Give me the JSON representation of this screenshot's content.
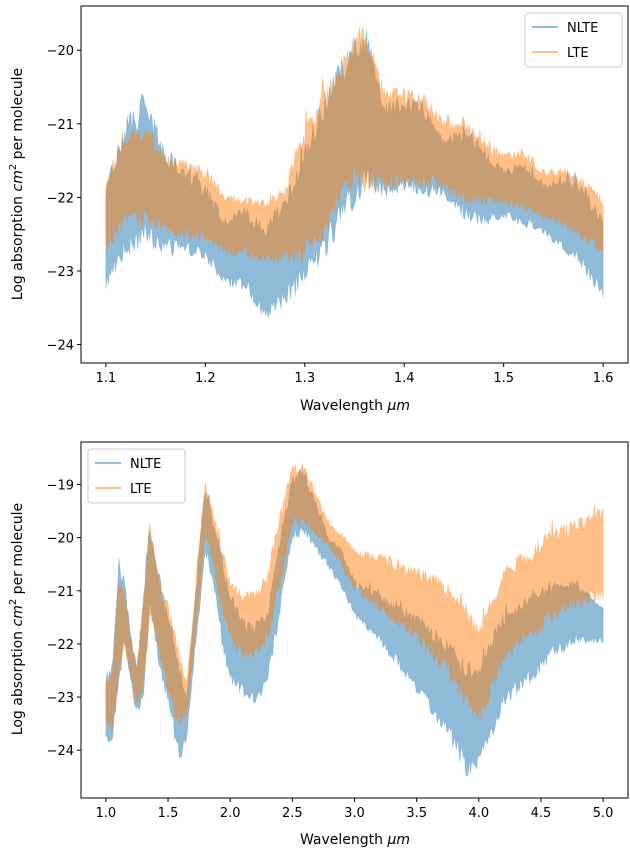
{
  "chart_data": [
    {
      "type": "area",
      "xlabel": "Wavelength",
      "xlabel_unit": "μm",
      "ylabel": "Log absorption",
      "ylabel_unit_base": "cm",
      "ylabel_unit_exp": "2",
      "ylabel_suffix": "per molecule",
      "xlim": [
        1.075,
        1.625
      ],
      "ylim": [
        -24.25,
        -19.4
      ],
      "xticks": [
        1.1,
        1.2,
        1.3,
        1.4,
        1.5,
        1.6
      ],
      "xtick_labels": [
        "1.1",
        "1.2",
        "1.3",
        "1.4",
        "1.5",
        "1.6"
      ],
      "yticks": [
        -24,
        -23,
        -22,
        -21,
        -20
      ],
      "ytick_labels": [
        "−24",
        "−23",
        "−22",
        "−21",
        "−20"
      ],
      "legend_position": "top-right",
      "grid": false,
      "series": [
        {
          "name": "NLTE",
          "color": "#1f77b4",
          "alpha": 0.5,
          "x": [
            1.1,
            1.12,
            1.14,
            1.16,
            1.18,
            1.2,
            1.22,
            1.24,
            1.26,
            1.28,
            1.3,
            1.32,
            1.34,
            1.36,
            1.38,
            1.4,
            1.42,
            1.44,
            1.46,
            1.48,
            1.5,
            1.52,
            1.54,
            1.56,
            1.58,
            1.6
          ],
          "upper": [
            -21.8,
            -20.9,
            -20.6,
            -21.3,
            -21.6,
            -21.8,
            -22.3,
            -22.1,
            -22.3,
            -22.0,
            -21.2,
            -20.6,
            -20.0,
            -19.6,
            -20.7,
            -20.6,
            -20.7,
            -21.2,
            -21.0,
            -21.3,
            -21.6,
            -21.5,
            -21.8,
            -21.7,
            -21.8,
            -22.3
          ],
          "lower": [
            -23.3,
            -22.8,
            -22.7,
            -22.8,
            -22.8,
            -22.9,
            -23.2,
            -23.3,
            -23.7,
            -23.5,
            -23.2,
            -22.9,
            -22.3,
            -22.0,
            -22.0,
            -21.95,
            -22.0,
            -22.0,
            -22.3,
            -22.4,
            -22.3,
            -22.4,
            -22.5,
            -22.8,
            -23.0,
            -23.4
          ]
        },
        {
          "name": "LTE",
          "color": "#ff7f0e",
          "alpha": 0.5,
          "x": [
            1.1,
            1.12,
            1.14,
            1.16,
            1.18,
            1.2,
            1.22,
            1.24,
            1.26,
            1.28,
            1.3,
            1.32,
            1.34,
            1.36,
            1.38,
            1.4,
            1.42,
            1.44,
            1.46,
            1.48,
            1.5,
            1.52,
            1.54,
            1.56,
            1.58,
            1.6
          ],
          "upper": [
            -21.7,
            -21.1,
            -21.0,
            -21.4,
            -21.5,
            -21.6,
            -21.9,
            -22.0,
            -22.0,
            -21.8,
            -21.0,
            -20.5,
            -20.0,
            -19.6,
            -20.5,
            -20.5,
            -20.6,
            -20.9,
            -20.9,
            -21.2,
            -21.4,
            -21.3,
            -21.6,
            -21.6,
            -21.7,
            -22.0
          ],
          "lower": [
            -22.8,
            -22.4,
            -22.4,
            -22.5,
            -22.6,
            -22.6,
            -22.8,
            -22.8,
            -22.9,
            -22.9,
            -22.9,
            -22.6,
            -22.0,
            -21.9,
            -21.9,
            -21.9,
            -21.9,
            -21.9,
            -22.1,
            -22.1,
            -22.1,
            -22.2,
            -22.3,
            -22.4,
            -22.6,
            -22.8
          ]
        }
      ]
    },
    {
      "type": "area",
      "xlabel": "Wavelength",
      "xlabel_unit": "μm",
      "ylabel": "Log absorption",
      "ylabel_unit_base": "cm",
      "ylabel_unit_exp": "2",
      "ylabel_suffix": "per molecule",
      "xlim": [
        0.8,
        5.2
      ],
      "ylim": [
        -24.9,
        -18.2
      ],
      "xticks": [
        1.0,
        1.5,
        2.0,
        2.5,
        3.0,
        3.5,
        4.0,
        4.5,
        5.0
      ],
      "xtick_labels": [
        "1.0",
        "1.5",
        "2.0",
        "2.5",
        "3.0",
        "3.5",
        "4.0",
        "4.5",
        "5.0"
      ],
      "yticks": [
        -24,
        -23,
        -22,
        -21,
        -20,
        -19
      ],
      "ytick_labels": [
        "−24",
        "−23",
        "−22",
        "−21",
        "−20",
        "−19"
      ],
      "legend_position": "top-left",
      "grid": false,
      "series": [
        {
          "name": "NLTE",
          "color": "#1f77b4",
          "alpha": 0.5,
          "x": [
            1.0,
            1.05,
            1.1,
            1.15,
            1.2,
            1.25,
            1.3,
            1.35,
            1.4,
            1.45,
            1.5,
            1.55,
            1.6,
            1.65,
            1.7,
            1.75,
            1.8,
            1.85,
            1.9,
            1.95,
            2.0,
            2.1,
            2.2,
            2.3,
            2.4,
            2.5,
            2.6,
            2.7,
            2.8,
            2.9,
            3.0,
            3.2,
            3.4,
            3.6,
            3.8,
            3.9,
            4.0,
            4.1,
            4.2,
            4.4,
            4.6,
            4.8,
            5.0
          ],
          "upper": [
            -22.6,
            -22.4,
            -20.3,
            -20.7,
            -21.8,
            -22.4,
            -21.0,
            -19.6,
            -20.2,
            -21.0,
            -21.3,
            -21.8,
            -22.4,
            -22.9,
            -21.6,
            -20.2,
            -19.0,
            -19.5,
            -19.9,
            -20.5,
            -21.0,
            -21.5,
            -21.6,
            -21.3,
            -20.0,
            -18.8,
            -18.7,
            -19.4,
            -20.0,
            -20.2,
            -20.8,
            -21.0,
            -21.3,
            -21.6,
            -22.0,
            -22.3,
            -22.4,
            -21.8,
            -21.4,
            -21.0,
            -20.8,
            -20.8,
            -21.3
          ],
          "lower": [
            -23.8,
            -24.0,
            -23.0,
            -22.0,
            -22.8,
            -23.4,
            -23.2,
            -21.5,
            -22.0,
            -22.8,
            -23.2,
            -23.8,
            -24.3,
            -23.8,
            -22.6,
            -21.5,
            -20.3,
            -20.8,
            -21.5,
            -22.3,
            -22.8,
            -23.0,
            -23.2,
            -22.8,
            -21.5,
            -20.0,
            -20.0,
            -20.3,
            -20.6,
            -21.0,
            -21.5,
            -22.0,
            -22.6,
            -23.3,
            -24.0,
            -24.5,
            -24.4,
            -23.8,
            -23.2,
            -22.8,
            -22.3,
            -22.0,
            -22.0
          ]
        },
        {
          "name": "LTE",
          "color": "#ff7f0e",
          "alpha": 0.5,
          "x": [
            1.0,
            1.05,
            1.1,
            1.15,
            1.2,
            1.25,
            1.3,
            1.35,
            1.4,
            1.45,
            1.5,
            1.55,
            1.6,
            1.65,
            1.7,
            1.75,
            1.8,
            1.85,
            1.9,
            1.95,
            2.0,
            2.1,
            2.2,
            2.3,
            2.4,
            2.5,
            2.6,
            2.7,
            2.8,
            2.9,
            3.0,
            3.2,
            3.4,
            3.6,
            3.8,
            3.9,
            4.0,
            4.1,
            4.2,
            4.4,
            4.6,
            4.8,
            5.0
          ],
          "upper": [
            -22.6,
            -22.5,
            -20.6,
            -20.9,
            -21.9,
            -22.4,
            -21.1,
            -19.6,
            -20.2,
            -21.0,
            -21.2,
            -21.7,
            -22.2,
            -22.7,
            -21.5,
            -20.0,
            -18.9,
            -19.3,
            -19.8,
            -20.3,
            -20.8,
            -21.0,
            -21.0,
            -20.6,
            -19.5,
            -18.6,
            -18.6,
            -19.2,
            -19.7,
            -19.9,
            -20.2,
            -20.3,
            -20.5,
            -20.6,
            -20.9,
            -21.2,
            -21.7,
            -21.0,
            -20.5,
            -20.2,
            -19.8,
            -19.6,
            -19.4
          ],
          "lower": [
            -23.5,
            -23.8,
            -22.9,
            -22.1,
            -22.6,
            -23.2,
            -23.0,
            -21.5,
            -21.8,
            -22.5,
            -23.0,
            -23.4,
            -23.6,
            -23.4,
            -22.4,
            -21.2,
            -20.0,
            -20.4,
            -21.0,
            -21.6,
            -22.0,
            -22.3,
            -22.3,
            -22.0,
            -21.0,
            -19.8,
            -19.8,
            -20.0,
            -20.2,
            -20.6,
            -21.0,
            -21.4,
            -21.8,
            -22.2,
            -22.8,
            -23.3,
            -23.6,
            -23.0,
            -22.4,
            -22.0,
            -21.6,
            -21.4,
            -21.2
          ]
        }
      ]
    }
  ]
}
